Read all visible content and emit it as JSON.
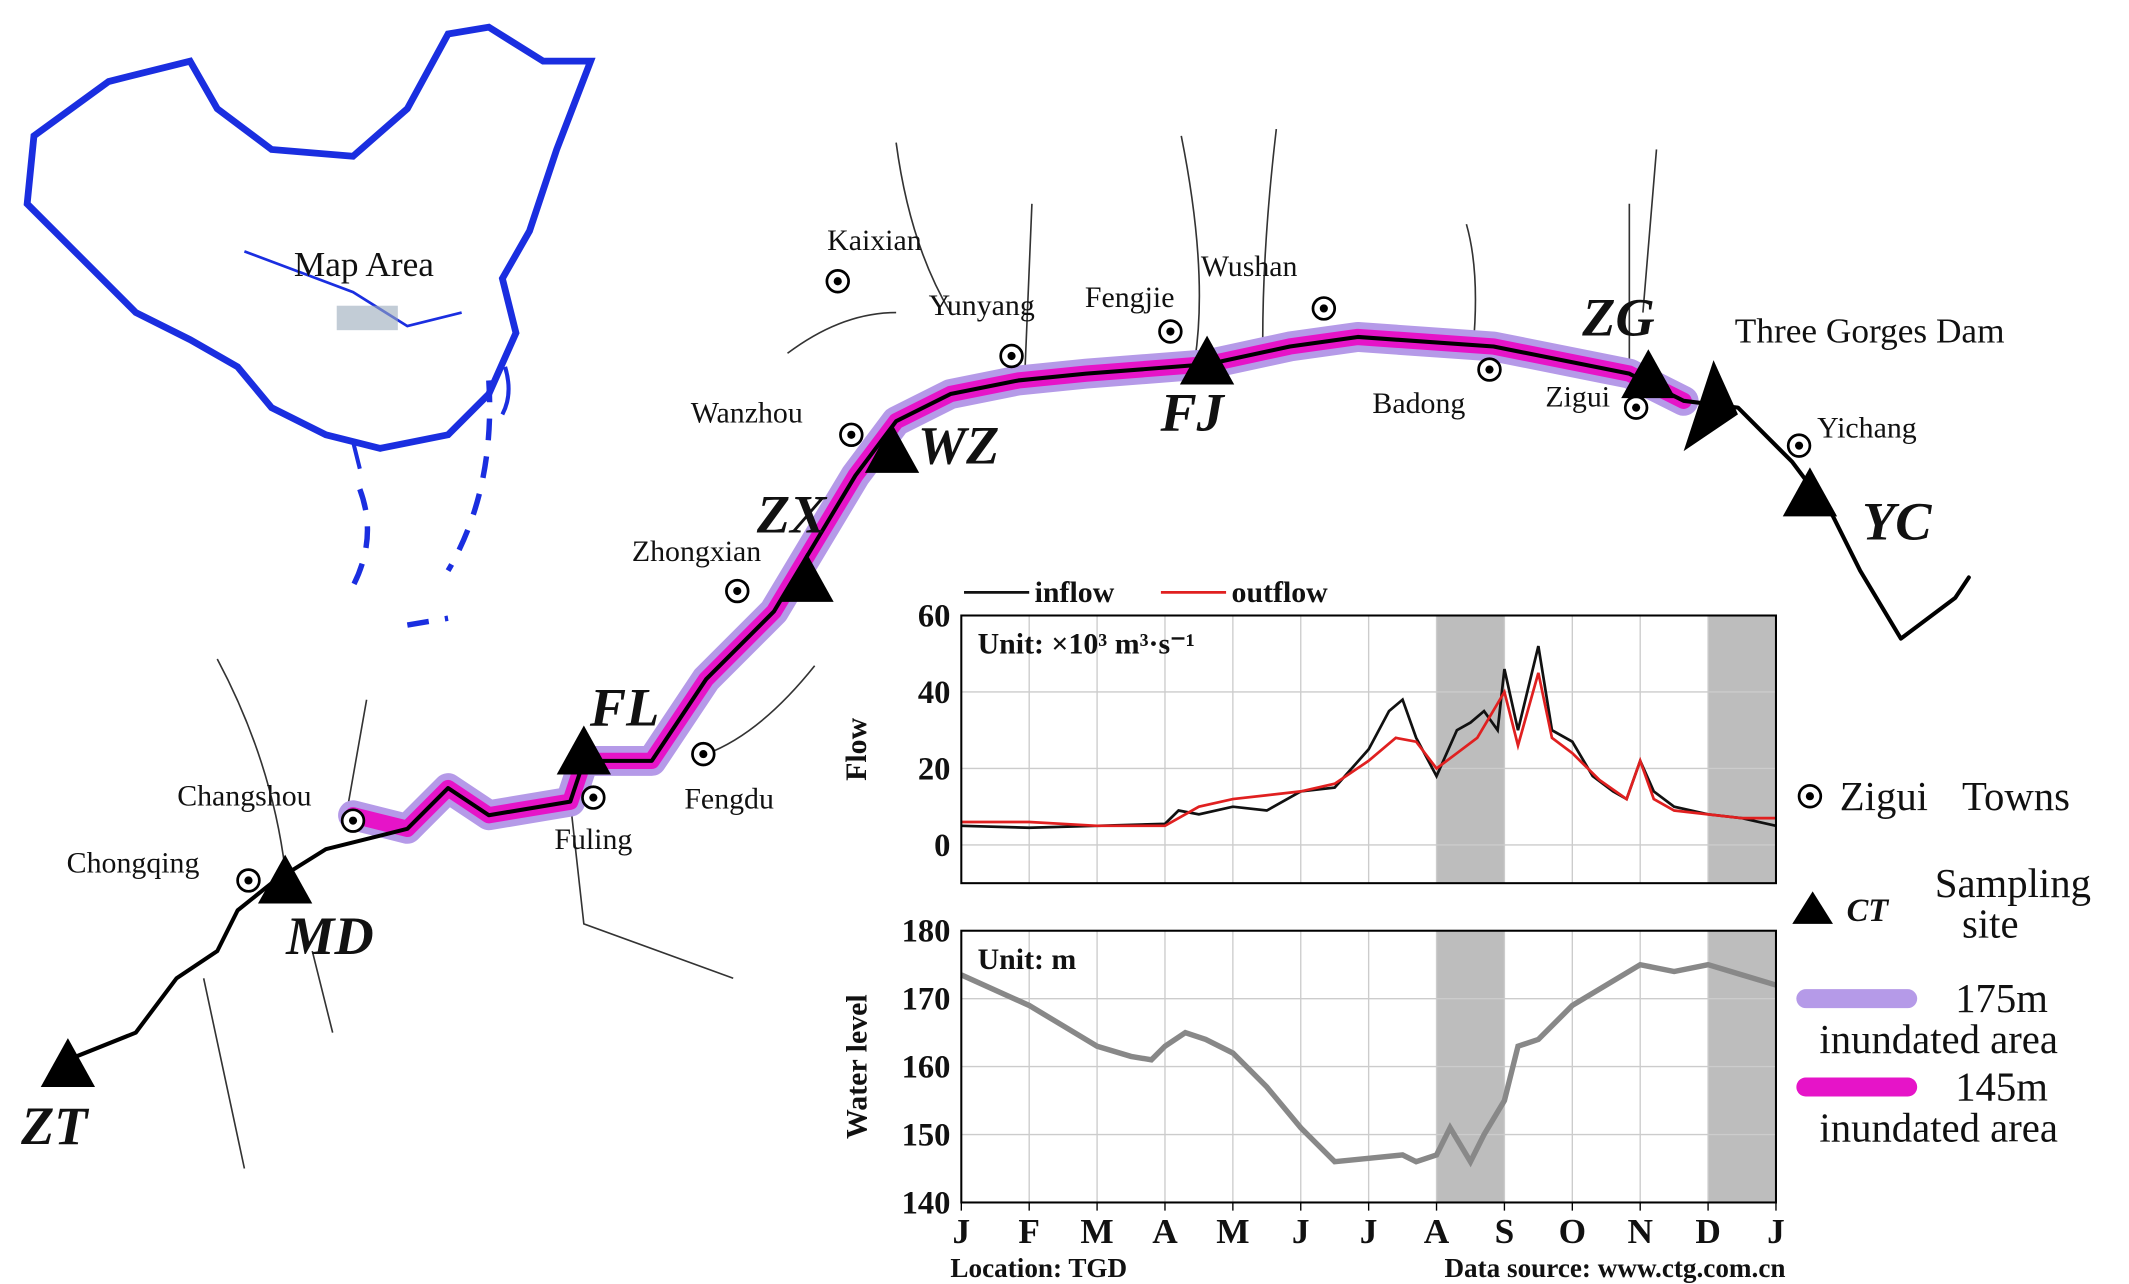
{
  "map": {
    "inset_label": "Map Area",
    "towns": [
      "Kaixian",
      "Yunyang",
      "Fengjie",
      "Wushan",
      "Badong",
      "Zigui",
      "Yichang",
      "Wanzhou",
      "Zhongxian",
      "Fengdu",
      "Fuling",
      "Changshou",
      "Chongqing"
    ],
    "sites": [
      "ZT",
      "MD",
      "FL",
      "ZX",
      "WZ",
      "FJ",
      "ZG",
      "YC"
    ],
    "dam": "Three Gorges Dam"
  },
  "legend": {
    "town_example": "Zigui",
    "towns": "Towns",
    "site_example": "CT",
    "sampling": [
      "Sampling",
      "site"
    ],
    "area175": [
      "175m",
      "inundated area"
    ],
    "area145": [
      "145m",
      "inundated area"
    ]
  },
  "chart_data": [
    {
      "type": "line",
      "ylabel": "Flow",
      "annotation": "Unit: ×10³ m³·s⁻¹",
      "xlim": [
        0,
        12
      ],
      "ylim": [
        -10,
        60
      ],
      "yticks": [
        0,
        20,
        40,
        60
      ],
      "grid": true,
      "shaded": [
        [
          7,
          8
        ],
        [
          11,
          12
        ]
      ],
      "series": [
        {
          "name": "inflow",
          "color": "#111111",
          "x": [
            0,
            1,
            2,
            3,
            3.2,
            3.5,
            4,
            4.5,
            5,
            5.5,
            6,
            6.3,
            6.5,
            6.7,
            7,
            7.3,
            7.5,
            7.7,
            7.9,
            8,
            8.2,
            8.5,
            8.7,
            9,
            9.3,
            9.6,
            9.8,
            10,
            10.2,
            10.5,
            11,
            11.5,
            12
          ],
          "values": [
            5,
            4.5,
            5,
            5.5,
            9,
            8,
            10,
            9,
            14,
            15,
            25,
            35,
            38,
            28,
            18,
            30,
            32,
            35,
            30,
            46,
            30,
            52,
            30,
            27,
            18,
            14,
            12,
            22,
            14,
            10,
            8,
            7,
            5
          ]
        },
        {
          "name": "outflow",
          "color": "#e02020",
          "x": [
            0,
            1,
            2,
            3,
            3.5,
            4,
            4.5,
            5,
            5.5,
            6,
            6.4,
            6.7,
            7,
            7.3,
            7.6,
            8,
            8.2,
            8.5,
            8.7,
            9,
            9.4,
            9.8,
            10,
            10.2,
            10.5,
            11,
            11.5,
            12
          ],
          "values": [
            6,
            6,
            5,
            5,
            10,
            12,
            13,
            14,
            16,
            22,
            28,
            27,
            20,
            24,
            28,
            40,
            26,
            45,
            28,
            24,
            17,
            12,
            22,
            12,
            9,
            8,
            7,
            7
          ]
        }
      ]
    },
    {
      "type": "line",
      "ylabel": "Water level",
      "annotation": "Unit: m",
      "xlim": [
        0,
        12
      ],
      "ylim": [
        140,
        180
      ],
      "yticks": [
        140,
        150,
        160,
        170,
        180
      ],
      "grid": true,
      "xticks": [
        {
          "value": 0,
          "label": "J"
        },
        {
          "value": 1,
          "label": "F"
        },
        {
          "value": 2,
          "label": "M"
        },
        {
          "value": 3,
          "label": "A"
        },
        {
          "value": 4,
          "label": "M"
        },
        {
          "value": 5,
          "label": "J"
        },
        {
          "value": 6,
          "label": "J"
        },
        {
          "value": 7,
          "label": "A"
        },
        {
          "value": 8,
          "label": "S"
        },
        {
          "value": 9,
          "label": "O"
        },
        {
          "value": 10,
          "label": "N"
        },
        {
          "value": 11,
          "label": "D"
        },
        {
          "value": 12,
          "label": "J"
        }
      ],
      "shaded": [
        [
          7,
          8
        ],
        [
          11,
          12
        ]
      ],
      "footer_left": "Location: TGD",
      "footer_right": "Data source: www.ctg.com.cn",
      "series": [
        {
          "color": "#888888",
          "x": [
            0,
            1,
            1.5,
            2,
            2.5,
            2.8,
            3,
            3.3,
            3.6,
            4,
            4.5,
            5,
            5.5,
            6,
            6.5,
            6.7,
            7,
            7.2,
            7.5,
            7.7,
            8,
            8.2,
            8.5,
            9,
            9.5,
            10,
            10.5,
            11,
            11.5,
            12
          ],
          "values": [
            173.5,
            169,
            166,
            163,
            161.5,
            161,
            163,
            165,
            164,
            162,
            157,
            151,
            146,
            146.5,
            147,
            146,
            147,
            151,
            146,
            150,
            155,
            163,
            164,
            169,
            172,
            175,
            174,
            175,
            173.5,
            172
          ]
        }
      ]
    }
  ]
}
